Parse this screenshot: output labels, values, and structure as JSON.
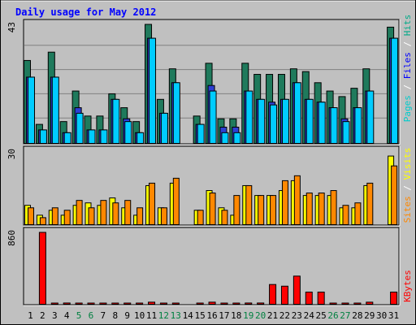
{
  "chart_data": {
    "type": "bar",
    "title": "Daily usage for May 2012",
    "days": [
      "1",
      "2",
      "3",
      "4",
      "5",
      "6",
      "7",
      "8",
      "9",
      "10",
      "11",
      "12",
      "13",
      "14",
      "15",
      "16",
      "17",
      "18",
      "19",
      "20",
      "21",
      "22",
      "23",
      "24",
      "25",
      "26",
      "27",
      "28",
      "29",
      "30",
      "31"
    ],
    "weekend_days": [
      "5",
      "6",
      "12",
      "13",
      "19",
      "20",
      "26",
      "27"
    ],
    "panels": [
      {
        "id": "top",
        "ymax_label": "43",
        "ylim": [
          0,
          43
        ],
        "series": [
          {
            "name": "Hits",
            "color": "#1f7a5c",
            "values": [
              30,
              7,
              33,
              8,
              19,
              10,
              10,
              18,
              13,
              8,
              43,
              16,
              27,
              0,
              10,
              29,
              9,
              9,
              29,
              25,
              25,
              25,
              27,
              26,
              22,
              19,
              17,
              20,
              27,
              0,
              42
            ]
          },
          {
            "name": "Files",
            "color": "#2d3fd3",
            "values": [
              24,
              5,
              24,
              4,
              13,
              5,
              5,
              16,
              9,
              4,
              38,
              11,
              22,
              0,
              7,
              21,
              6,
              6,
              19,
              16,
              15,
              16,
              22,
              16,
              15,
              13,
              9,
              13,
              19,
              0,
              38
            ]
          },
          {
            "name": "Pages",
            "color": "#00ccff",
            "values": [
              24,
              5,
              24,
              4,
              11,
              5,
              5,
              16,
              8,
              4,
              38,
              11,
              22,
              0,
              7,
              19,
              4,
              4,
              19,
              16,
              14,
              16,
              22,
              16,
              15,
              13,
              8,
              13,
              19,
              0,
              38
            ]
          }
        ]
      },
      {
        "id": "mid",
        "ymax_label": "30",
        "ylim": [
          0,
          30
        ],
        "series": [
          {
            "name": "Visits",
            "color": "#ffff00",
            "values": [
              8,
              4,
              6,
              4,
              8,
              9,
              8,
              11,
              7,
              4,
              16,
              7,
              17,
              0,
              6,
              14,
              7,
              4,
              16,
              12,
              12,
              14,
              18,
              12,
              12,
              12,
              7,
              7,
              16,
              0,
              28
            ]
          },
          {
            "name": "Sites",
            "color": "#ff8800",
            "values": [
              7,
              3,
              7,
              6,
              10,
              7,
              10,
              9,
              10,
              7,
              17,
              7,
              19,
              0,
              6,
              13,
              6,
              12,
              16,
              12,
              12,
              18,
              20,
              13,
              13,
              14,
              8,
              9,
              17,
              0,
              24
            ]
          }
        ]
      },
      {
        "id": "bottom",
        "ymax_label": "860",
        "ylim": [
          0,
          860
        ],
        "series": [
          {
            "name": "KBytes",
            "color": "#ff0000",
            "values": [
              0,
              860,
              10,
              20,
              10,
              10,
              10,
              10,
              10,
              10,
              30,
              10,
              10,
              0,
              10,
              30,
              10,
              10,
              20,
              20,
              240,
              220,
              340,
              150,
              150,
              10,
              10,
              10,
              30,
              0,
              150
            ]
          }
        ]
      }
    ],
    "legend_labels": {
      "top": [
        "Pages",
        "Files",
        "Hits"
      ],
      "mid": [
        "Sites",
        "Visits"
      ],
      "bottom": [
        "KBytes"
      ]
    }
  },
  "colors": {
    "frame_bg": "#c0c0c0",
    "plot_bg": "#c0c0c0",
    "title_color": "#0000ff",
    "separator": "#ffffff",
    "weekday_label": "#000000",
    "weekend_label": "#008040"
  }
}
